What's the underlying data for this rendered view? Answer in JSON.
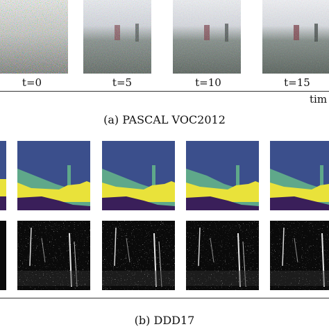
{
  "top": {
    "frames": [
      {
        "label": "t=0"
      },
      {
        "label": "t=5"
      },
      {
        "label": "t=10"
      },
      {
        "label": "t=15"
      }
    ],
    "axis_label": "tim",
    "caption": "(a) PASCAL VOC2012"
  },
  "bottom": {
    "caption": "(b) DDD17"
  },
  "colors": {
    "seg_blue": "#3b4f8c",
    "seg_teal": "#5fa88a",
    "seg_yellow": "#e9e23a",
    "seg_purple": "#3a1f5a",
    "event_bg": "#0a0a0a"
  }
}
